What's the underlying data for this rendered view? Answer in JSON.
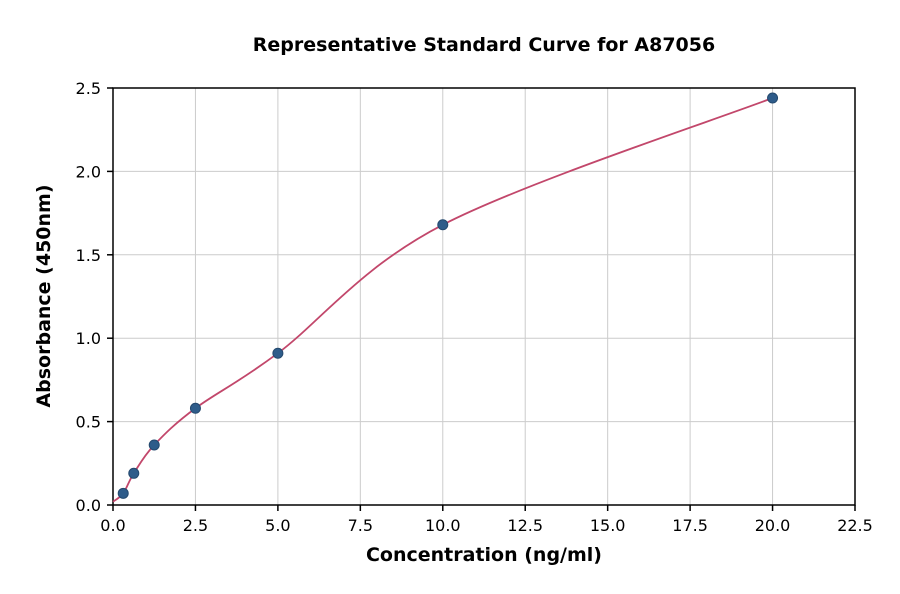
{
  "chart_data": {
    "type": "scatter",
    "title": "Representative Standard Curve for A87056",
    "xlabel": "Concentration (ng/ml)",
    "ylabel": "Absorbance (450nm)",
    "xlim": [
      0,
      22.5
    ],
    "ylim": [
      0,
      2.5
    ],
    "x_ticks": [
      0.0,
      2.5,
      5.0,
      7.5,
      10.0,
      12.5,
      15.0,
      17.5,
      20.0,
      22.5
    ],
    "x_tick_labels": [
      "0.0",
      "2.5",
      "5.0",
      "7.5",
      "10.0",
      "12.5",
      "15.0",
      "17.5",
      "20.0",
      "22.5"
    ],
    "y_ticks": [
      0.0,
      0.5,
      1.0,
      1.5,
      2.0,
      2.5
    ],
    "y_tick_labels": [
      "0.0",
      "0.5",
      "1.0",
      "1.5",
      "2.0",
      "2.5"
    ],
    "grid": true,
    "legend": "none",
    "points": [
      {
        "x": 0.31,
        "y": 0.07
      },
      {
        "x": 0.63,
        "y": 0.19
      },
      {
        "x": 1.25,
        "y": 0.36
      },
      {
        "x": 2.5,
        "y": 0.58
      },
      {
        "x": 5,
        "y": 0.91
      },
      {
        "x": 10,
        "y": 1.68
      },
      {
        "x": 20,
        "y": 2.44
      }
    ],
    "curve_start": {
      "x": 0,
      "y": 0.02
    },
    "colors": {
      "point": "#2e5c8a",
      "point_edge": "#24496e",
      "curve": "#c2476b",
      "grid": "#cccccc",
      "axis": "#000000",
      "tick_text": "#000000"
    }
  }
}
